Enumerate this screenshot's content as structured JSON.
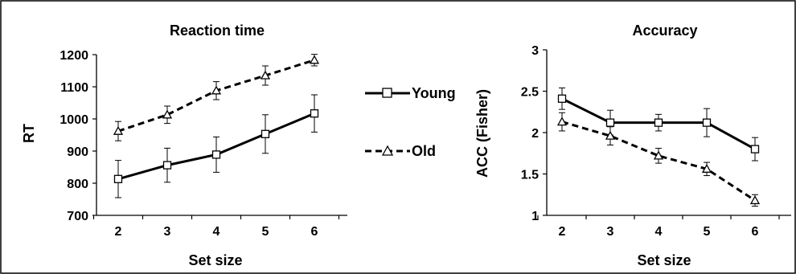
{
  "chart_data": [
    {
      "type": "line",
      "title": "Reaction time",
      "xlabel": "Set size",
      "ylabel": "RT",
      "categories": [
        "2",
        "3",
        "4",
        "5",
        "6"
      ],
      "ylim": [
        700,
        1200
      ],
      "yticks": [
        "700",
        "800",
        "900",
        "1000",
        "1100",
        "1200"
      ],
      "grid": false,
      "series": [
        {
          "name": "Young",
          "style": "solid",
          "marker": "square",
          "values": [
            813,
            856,
            889,
            953,
            1017
          ],
          "errors": [
            58,
            53,
            55,
            60,
            58
          ]
        },
        {
          "name": "Old",
          "style": "dashed",
          "marker": "triangle",
          "values": [
            962,
            1013,
            1088,
            1135,
            1183
          ],
          "errors": [
            30,
            27,
            28,
            30,
            18
          ]
        }
      ]
    },
    {
      "type": "line",
      "title": "Accuracy",
      "xlabel": "Set size",
      "ylabel": "ACC (Fisher)",
      "categories": [
        "2",
        "3",
        "4",
        "5",
        "6"
      ],
      "ylim": [
        1,
        3
      ],
      "yticks": [
        "1",
        "1.5",
        "2",
        "2.5",
        "3"
      ],
      "grid": false,
      "series": [
        {
          "name": "Young",
          "style": "solid",
          "marker": "square",
          "values": [
            2.41,
            2.12,
            2.12,
            2.12,
            1.8
          ],
          "errors": [
            0.13,
            0.15,
            0.1,
            0.17,
            0.14
          ]
        },
        {
          "name": "Old",
          "style": "dashed",
          "marker": "triangle",
          "values": [
            2.13,
            1.96,
            1.72,
            1.56,
            1.18
          ],
          "errors": [
            0.11,
            0.11,
            0.09,
            0.08,
            0.07
          ]
        }
      ]
    }
  ],
  "legend": {
    "placement": "center",
    "items": [
      {
        "label": "Young",
        "style": "solid",
        "marker": "square"
      },
      {
        "label": "Old",
        "style": "dashed",
        "marker": "triangle"
      }
    ]
  }
}
